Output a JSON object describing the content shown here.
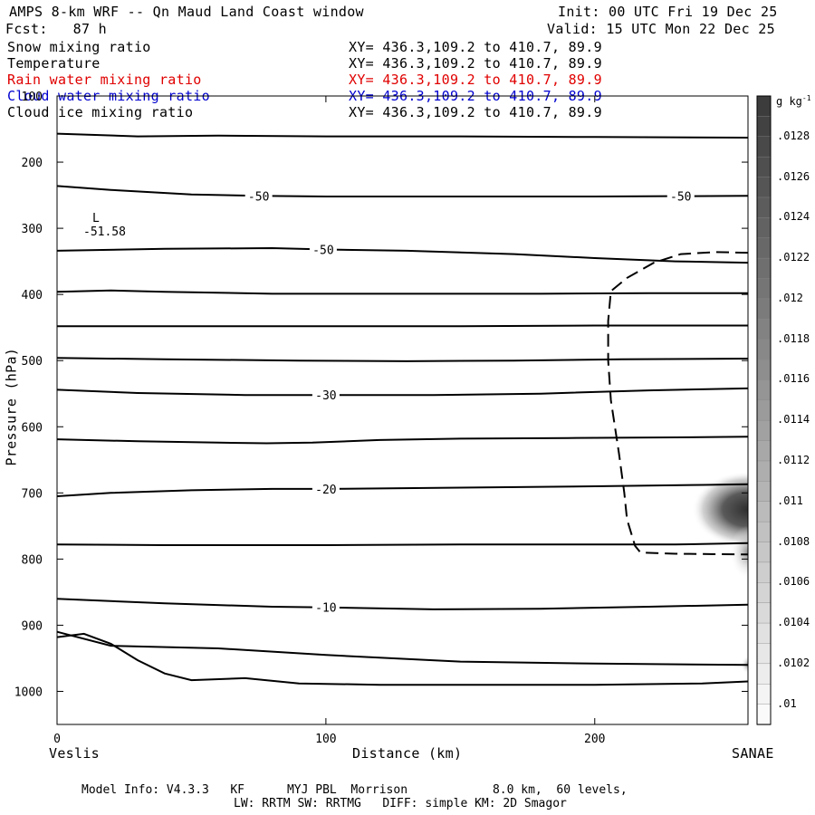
{
  "header": {
    "title": "AMPS 8-km WRF -- Qn Maud Land Coast window",
    "init": "Init: 00 UTC Fri 19 Dec 25",
    "fcst": "Fcst:   87 h",
    "valid": "Valid: 15 UTC Mon 22 Dec 25"
  },
  "fields": [
    {
      "name": "Snow mixing ratio",
      "xy": "XY= 436.3,109.2 to 410.7, 89.9",
      "color": "#000000"
    },
    {
      "name": "Temperature",
      "xy": "XY= 436.3,109.2 to 410.7, 89.9",
      "color": "#000000"
    },
    {
      "name": "Rain water mixing ratio",
      "xy": "XY= 436.3,109.2 to 410.7, 89.9",
      "color": "#e00000"
    },
    {
      "name": "Cloud water mixing ratio",
      "xy": "XY= 436.3,109.2 to 410.7, 89.9",
      "color": "#0000d0"
    },
    {
      "name": "Cloud ice mixing ratio",
      "xy": "XY= 436.3,109.2 to 410.7, 89.9",
      "color": "#000000"
    }
  ],
  "footer": {
    "line1": "Model Info: V4.3.3   KF      MYJ PBL  Morrison            8.0 km,  60 levels,",
    "line2": "LW: RRTM SW: RRTMG   DIFF: simple KM: 2D Smagor"
  },
  "chart_data": {
    "type": "line",
    "title": "",
    "xlabel": "Distance (km)",
    "ylabel": "Pressure (hPa)",
    "xlim": [
      0,
      257
    ],
    "ylim": [
      1050,
      100
    ],
    "x_ticks": [
      0,
      100,
      200
    ],
    "y_ticks": [
      100,
      200,
      300,
      400,
      500,
      600,
      700,
      800,
      900,
      1000
    ],
    "x_endpoint_labels": {
      "left": "Veslis",
      "right": "SANAE"
    },
    "low_marker": {
      "letter": "L",
      "value": "-51.58",
      "x": 14,
      "pressure": 292
    },
    "temperature_contours": [
      {
        "points": [
          [
            0,
            157
          ],
          [
            30,
            161
          ],
          [
            60,
            160
          ],
          [
            100,
            161
          ],
          [
            150,
            161
          ],
          [
            200,
            162
          ],
          [
            257,
            163
          ]
        ]
      },
      {
        "points": [
          [
            0,
            236
          ],
          [
            20,
            242
          ],
          [
            50,
            249
          ],
          [
            75,
            251
          ],
          [
            100,
            252
          ],
          [
            150,
            252
          ],
          [
            200,
            252
          ],
          [
            257,
            251
          ]
        ],
        "labels": [
          {
            "text": "-50",
            "x": 75
          },
          {
            "text": "-50",
            "x": 232
          }
        ]
      },
      {
        "points": [
          [
            0,
            334
          ],
          [
            40,
            331
          ],
          [
            80,
            330
          ],
          [
            100,
            332
          ],
          [
            130,
            334
          ],
          [
            170,
            339
          ],
          [
            200,
            345
          ],
          [
            230,
            350
          ],
          [
            257,
            352
          ]
        ],
        "labels": [
          {
            "text": "-50",
            "x": 99
          }
        ]
      },
      {
        "points": [
          [
            0,
            396
          ],
          [
            20,
            394
          ],
          [
            40,
            396
          ],
          [
            80,
            399
          ],
          [
            130,
            399
          ],
          [
            180,
            399
          ],
          [
            220,
            398
          ],
          [
            257,
            398
          ]
        ]
      },
      {
        "points": [
          [
            0,
            448
          ],
          [
            50,
            448
          ],
          [
            100,
            448
          ],
          [
            150,
            448
          ],
          [
            200,
            447
          ],
          [
            257,
            447
          ]
        ]
      },
      {
        "points": [
          [
            0,
            496
          ],
          [
            40,
            498
          ],
          [
            90,
            500
          ],
          [
            130,
            501
          ],
          [
            170,
            500
          ],
          [
            210,
            498
          ],
          [
            257,
            497
          ]
        ]
      },
      {
        "points": [
          [
            0,
            544
          ],
          [
            30,
            549
          ],
          [
            70,
            552
          ],
          [
            100,
            552
          ],
          [
            140,
            552
          ],
          [
            180,
            550
          ],
          [
            220,
            545
          ],
          [
            257,
            542
          ]
        ],
        "labels": [
          {
            "text": "-30",
            "x": 100
          }
        ]
      },
      {
        "points": [
          [
            0,
            619
          ],
          [
            30,
            622
          ],
          [
            60,
            624
          ],
          [
            78,
            625
          ],
          [
            95,
            624
          ],
          [
            120,
            620
          ],
          [
            150,
            618
          ],
          [
            190,
            617
          ],
          [
            230,
            616
          ],
          [
            257,
            615
          ]
        ]
      },
      {
        "points": [
          [
            0,
            705
          ],
          [
            20,
            700
          ],
          [
            50,
            696
          ],
          [
            80,
            694
          ],
          [
            100,
            694
          ],
          [
            150,
            692
          ],
          [
            200,
            690
          ],
          [
            240,
            688
          ],
          [
            257,
            687
          ]
        ],
        "labels": [
          {
            "text": "-20",
            "x": 100
          }
        ]
      },
      {
        "points": [
          [
            0,
            778
          ],
          [
            40,
            779
          ],
          [
            100,
            779
          ],
          [
            150,
            778
          ],
          [
            200,
            778
          ],
          [
            230,
            778
          ],
          [
            257,
            776
          ]
        ]
      },
      {
        "points": [
          [
            0,
            860
          ],
          [
            40,
            867
          ],
          [
            80,
            872
          ],
          [
            100,
            873
          ],
          [
            140,
            876
          ],
          [
            180,
            875
          ],
          [
            220,
            872
          ],
          [
            257,
            869
          ]
        ],
        "labels": [
          {
            "text": "-10",
            "x": 100
          }
        ]
      },
      {
        "points": [
          [
            0,
            918
          ],
          [
            10,
            913
          ],
          [
            20,
            928
          ],
          [
            30,
            953
          ],
          [
            40,
            973
          ],
          [
            50,
            983
          ],
          [
            70,
            980
          ],
          [
            90,
            988
          ],
          [
            120,
            990
          ],
          [
            160,
            990
          ],
          [
            200,
            990
          ],
          [
            240,
            988
          ],
          [
            257,
            985
          ]
        ]
      },
      {
        "points": [
          [
            0,
            910
          ],
          [
            20,
            931
          ],
          [
            60,
            935
          ],
          [
            100,
            945
          ],
          [
            150,
            955
          ],
          [
            200,
            958
          ],
          [
            257,
            960
          ]
        ]
      }
    ],
    "cloud_contour_dashed": {
      "points": [
        [
          257,
          337
        ],
        [
          245,
          336
        ],
        [
          232,
          339
        ],
        [
          222,
          352
        ],
        [
          212,
          375
        ],
        [
          206,
          395
        ],
        [
          205,
          440
        ],
        [
          205,
          500
        ],
        [
          206,
          560
        ],
        [
          209,
          640
        ],
        [
          211,
          700
        ],
        [
          212,
          740
        ],
        [
          215,
          780
        ],
        [
          217,
          790
        ],
        [
          230,
          792
        ],
        [
          257,
          793
        ]
      ]
    },
    "shaded_maxima": [
      {
        "x": 257,
        "pressure": 725,
        "peak": 0.0122
      },
      {
        "x": 257,
        "pressure": 790,
        "peak": 0.011
      },
      {
        "x": 257,
        "pressure": 960,
        "peak": 0.0104
      }
    ],
    "colorbar": {
      "unit": "g kg",
      "unit_exp": "-1",
      "min": 0.0099,
      "max": 0.013,
      "labels": [
        ".0128",
        ".0126",
        ".0124",
        ".0122",
        ".012",
        ".0118",
        ".0116",
        ".0114",
        ".0112",
        ".011",
        ".0108",
        ".0106",
        ".0104",
        ".0102",
        ".01"
      ],
      "label_values": [
        0.0128,
        0.0126,
        0.0124,
        0.0122,
        0.012,
        0.0118,
        0.0116,
        0.0114,
        0.0112,
        0.011,
        0.0108,
        0.0106,
        0.0104,
        0.0102,
        0.01
      ]
    }
  }
}
